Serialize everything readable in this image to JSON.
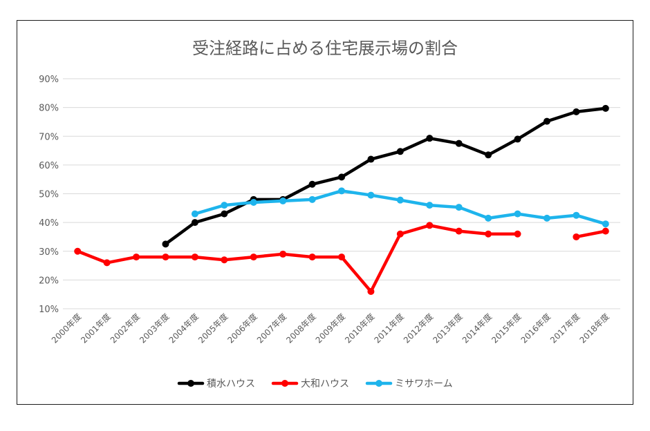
{
  "chart_data": {
    "type": "line",
    "title": "受注経路に占める住宅展示場の割合",
    "xlabel": "",
    "ylabel": "",
    "categories": [
      "2000年度",
      "2001年度",
      "2002年度",
      "2003年度",
      "2004年度",
      "2005年度",
      "2006年度",
      "2007年度",
      "2008年度",
      "2009年度",
      "2010年度",
      "2011年度",
      "2012年度",
      "2013年度",
      "2014年度",
      "2015年度",
      "2016年度",
      "2017年度",
      "2018年度"
    ],
    "yticks": [
      "10%",
      "20%",
      "30%",
      "40%",
      "50%",
      "60%",
      "70%",
      "80%",
      "90%"
    ],
    "ylim": [
      10,
      90
    ],
    "grid": true,
    "legend_position": "bottom",
    "series": [
      {
        "name": "積水ハウス",
        "color": "#000000",
        "values": [
          null,
          null,
          null,
          32.5,
          40,
          43,
          48,
          48,
          53.3,
          55.8,
          62,
          64.7,
          69.3,
          67.5,
          63.5,
          69,
          75.2,
          78.5,
          79.7
        ]
      },
      {
        "name": "大和ハウス",
        "color": "#ff0000",
        "values": [
          30,
          26,
          28,
          28,
          28,
          27,
          28,
          29,
          28,
          28,
          16,
          36,
          39,
          37,
          36,
          36,
          null,
          35,
          37
        ]
      },
      {
        "name": "ミサワホーム",
        "color": "#1eb4ec",
        "values": [
          null,
          null,
          null,
          null,
          43,
          46,
          47,
          47.5,
          48,
          51,
          49.5,
          47.8,
          46,
          45.3,
          41.5,
          43,
          41.5,
          42.5,
          39.5
        ]
      }
    ]
  }
}
